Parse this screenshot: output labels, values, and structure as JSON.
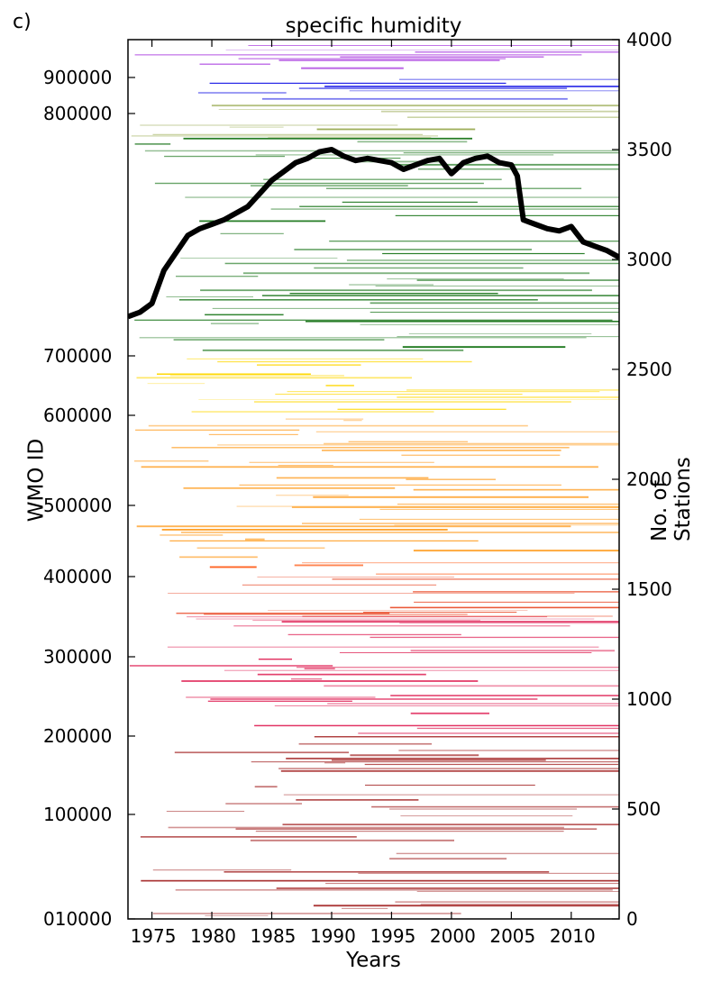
{
  "panel_label": "c)",
  "chart_data": {
    "type": "heatmap",
    "title": "specific humidity",
    "xlabel": "Years",
    "ylabel_left": "WMO ID",
    "ylabel_right": "No. of Stations",
    "xlim": [
      1973,
      2014
    ],
    "x_ticks": [
      1975,
      1980,
      1985,
      1990,
      1995,
      2000,
      2005,
      2010
    ],
    "y_left_ticks": [
      {
        "label": "010000",
        "value": 10000
      },
      {
        "label": "100000",
        "value": 100000
      },
      {
        "label": "200000",
        "value": 200000
      },
      {
        "label": "300000",
        "value": 300000
      },
      {
        "label": "400000",
        "value": 400000
      },
      {
        "label": "500000",
        "value": 500000
      },
      {
        "label": "600000",
        "value": 600000
      },
      {
        "label": "700000",
        "value": 700000
      },
      {
        "label": "800000",
        "value": 800000
      },
      {
        "label": "900000",
        "value": 900000
      }
    ],
    "y_right_lim": [
      0,
      4000
    ],
    "y_right_ticks": [
      0,
      500,
      1000,
      1500,
      2000,
      2500,
      3000,
      3500,
      4000
    ],
    "bands": [
      {
        "from": 10000,
        "to": 200000,
        "color": "#a01c1c"
      },
      {
        "from": 200000,
        "to": 350000,
        "color": "#e0285a"
      },
      {
        "from": 350000,
        "to": 400000,
        "color": "#e8401c"
      },
      {
        "from": 400000,
        "to": 420000,
        "color": "#ff5a14"
      },
      {
        "from": 420000,
        "to": 600000,
        "color": "#ffa028"
      },
      {
        "from": 600000,
        "to": 700000,
        "color": "#ffd700"
      },
      {
        "from": 700000,
        "to": 790000,
        "color": "#1e781e"
      },
      {
        "from": 790000,
        "to": 830000,
        "color": "#8ca03c"
      },
      {
        "from": 830000,
        "to": 920000,
        "color": "#1e1ee6"
      },
      {
        "from": 920000,
        "to": 990000,
        "color": "#a028dc"
      }
    ],
    "series": [
      {
        "x": [
          1973.0,
          1974.0,
          1975.0,
          1976.0,
          1977.0,
          1978.0,
          1979.0,
          1980.0,
          1981.0,
          1982.0,
          1983.0,
          1984.0,
          1985.0,
          1986.0,
          1987.0,
          1988.0,
          1989.0,
          1990.0,
          1991.0,
          1992.0,
          1993.0,
          1994.0,
          1995.0,
          1996.0,
          1997.0,
          1998.0,
          1999.0,
          2000.0,
          2001.0,
          2002.0,
          2003.0,
          2004.0,
          2005.0,
          2005.5,
          2006.0,
          2007.0,
          2008.0,
          2009.0,
          2010.0,
          2011.0,
          2012.0,
          2013.0,
          2014.0
        ],
        "y": [
          2740,
          2760,
          2800,
          2950,
          3030,
          3110,
          3140,
          3160,
          3180,
          3210,
          3240,
          3300,
          3360,
          3400,
          3440,
          3460,
          3490,
          3500,
          3470,
          3450,
          3460,
          3450,
          3440,
          3410,
          3430,
          3450,
          3460,
          3390,
          3440,
          3460,
          3470,
          3440,
          3430,
          3380,
          3180,
          3160,
          3140,
          3130,
          3150,
          3080,
          3060,
          3040,
          3010
        ]
      }
    ]
  }
}
